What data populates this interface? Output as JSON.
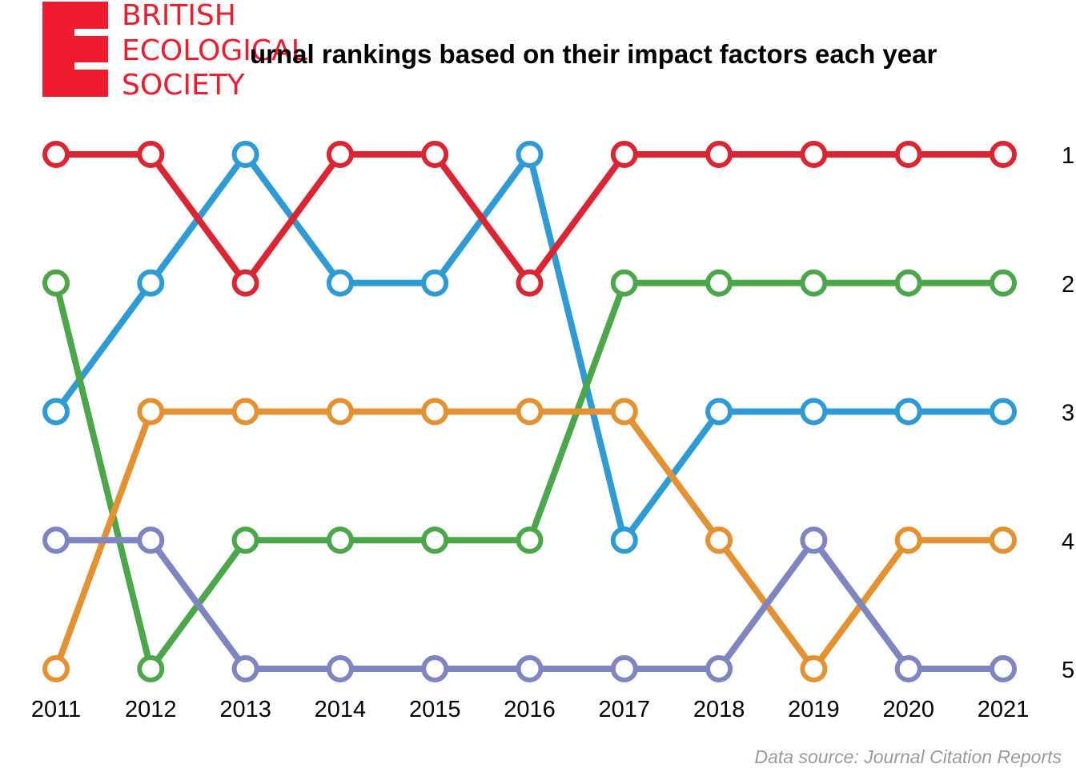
{
  "logo": {
    "lines": [
      "BRITISH",
      "ECOLOGICAL",
      "SOCIETY"
    ],
    "color": "#ee1c2e"
  },
  "chart_data": {
    "type": "line",
    "title": "urnal rankings based on their impact factors each year",
    "x": [
      "2011",
      "2012",
      "2013",
      "2014",
      "2015",
      "2016",
      "2017",
      "2018",
      "2019",
      "2020",
      "2021"
    ],
    "y_ticks": [
      "1",
      "2",
      "3",
      "4",
      "5"
    ],
    "ylim": [
      1,
      5
    ],
    "y_inverted": true,
    "y_axis_position": "right",
    "grid": false,
    "legend": "none",
    "marker": "open-circle",
    "series": [
      {
        "color": "#2e9bd4",
        "values": [
          3,
          2,
          1,
          2,
          2,
          1,
          4,
          3,
          3,
          3,
          3
        ]
      },
      {
        "color": "#4ca64a",
        "values": [
          2,
          5,
          4,
          4,
          4,
          4,
          2,
          2,
          2,
          2,
          2
        ]
      },
      {
        "color": "#e39131",
        "values": [
          5,
          3,
          3,
          3,
          3,
          3,
          3,
          4,
          5,
          4,
          4
        ]
      },
      {
        "color": "#7e85c0",
        "values": [
          4,
          4,
          5,
          5,
          5,
          5,
          5,
          5,
          4,
          5,
          5
        ]
      },
      {
        "color": "#dc2532",
        "values": [
          1,
          1,
          2,
          1,
          1,
          2,
          1,
          1,
          1,
          1,
          1
        ]
      }
    ]
  },
  "source": "Data source: Journal Citation Reports"
}
